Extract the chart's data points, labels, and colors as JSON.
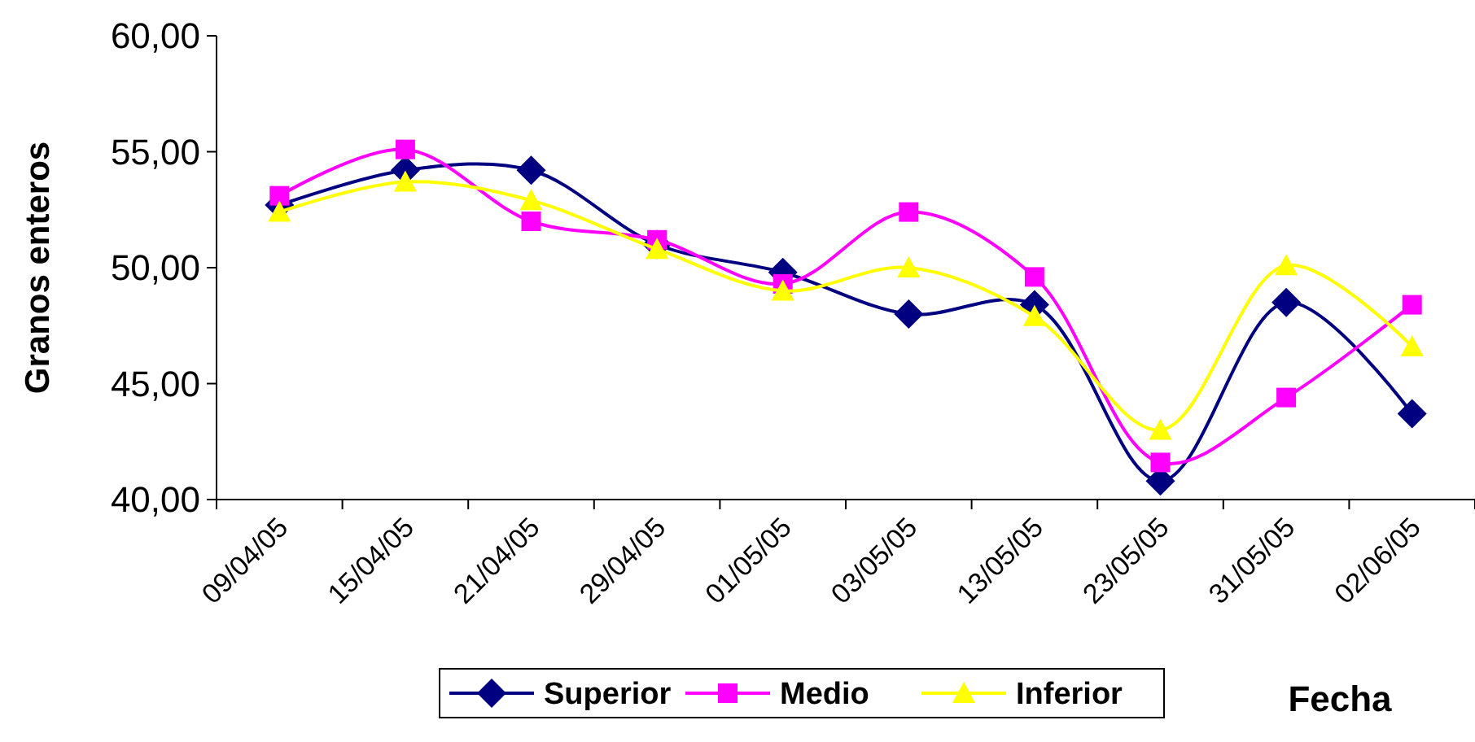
{
  "chart_data": {
    "type": "line",
    "xlabel": "Fecha",
    "ylabel": "Granos enteros",
    "categories": [
      "09/04/05",
      "15/04/05",
      "21/04/05",
      "29/04/05",
      "01/05/05",
      "03/05/05",
      "13/05/05",
      "23/05/05",
      "31/05/05",
      "02/06/05"
    ],
    "series": [
      {
        "name": "Superior",
        "color": "#000080",
        "marker": "diamond",
        "values": [
          52.7,
          54.2,
          54.2,
          51.0,
          49.8,
          48.0,
          48.4,
          40.8,
          48.5,
          43.7
        ]
      },
      {
        "name": "Medio",
        "color": "#ff00ff",
        "marker": "square",
        "values": [
          53.1,
          55.1,
          52.0,
          51.2,
          49.3,
          52.4,
          49.6,
          41.6,
          44.4,
          48.4
        ]
      },
      {
        "name": "Inferior",
        "color": "#ffff00",
        "marker": "triangle",
        "values": [
          52.4,
          53.7,
          52.9,
          50.8,
          49.0,
          50.0,
          47.9,
          43.0,
          50.1,
          46.6
        ]
      }
    ],
    "ylim": [
      40,
      60
    ],
    "yticks": [
      {
        "value": 40,
        "label": "40,00"
      },
      {
        "value": 45,
        "label": "45,00"
      },
      {
        "value": 50,
        "label": "50,00"
      },
      {
        "value": 55,
        "label": "55,00"
      },
      {
        "value": 60,
        "label": "60,00"
      }
    ],
    "grid": false,
    "legend": "bottom"
  }
}
